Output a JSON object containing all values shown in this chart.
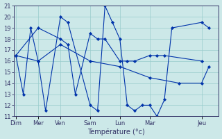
{
  "xlabel": "Température (°c)",
  "bg_color": "#cce8e8",
  "line_color": "#0033aa",
  "marker": "D",
  "markersize": 2.2,
  "linewidth": 0.8,
  "ylim": [
    11,
    21
  ],
  "yticks": [
    11,
    12,
    13,
    14,
    15,
    16,
    17,
    18,
    19,
    20,
    21
  ],
  "day_labels": [
    "Dim",
    "Mer",
    "Ven",
    "Sam",
    "Lun",
    "Mar",
    "Jeu"
  ],
  "day_tick_positions": [
    0,
    3,
    6,
    10,
    14,
    18,
    25
  ],
  "xlim": [
    -0.3,
    27.3
  ],
  "series": [
    {
      "x": [
        0,
        1,
        2,
        3,
        4,
        6,
        7,
        10,
        11,
        12,
        13,
        14,
        15,
        16,
        17,
        18,
        19,
        20,
        21,
        25,
        26
      ],
      "y": [
        16.5,
        13.0,
        19.0,
        16.0,
        11.5,
        20.0,
        19.5,
        12.0,
        11.5,
        21.0,
        19.5,
        18.0,
        12.0,
        11.5,
        12.0,
        12.0,
        11.0,
        12.5,
        19.0,
        19.5,
        19.0
      ]
    },
    {
      "x": [
        0,
        3,
        6,
        7,
        8,
        10,
        11,
        12,
        14,
        15,
        16,
        18,
        19,
        20,
        25
      ],
      "y": [
        16.5,
        19.0,
        18.0,
        17.5,
        13.0,
        18.5,
        18.0,
        18.0,
        16.0,
        16.0,
        16.0,
        16.5,
        16.5,
        16.5,
        16.0
      ]
    },
    {
      "x": [
        0,
        3,
        6,
        10,
        14,
        18,
        22,
        25,
        26
      ],
      "y": [
        16.5,
        16.0,
        17.5,
        16.0,
        15.5,
        14.5,
        14.0,
        14.0,
        15.5
      ]
    }
  ],
  "grid_color": "#99cccc",
  "tick_color": "#333366",
  "tick_labelsize": 6,
  "xlabel_fontsize": 7
}
